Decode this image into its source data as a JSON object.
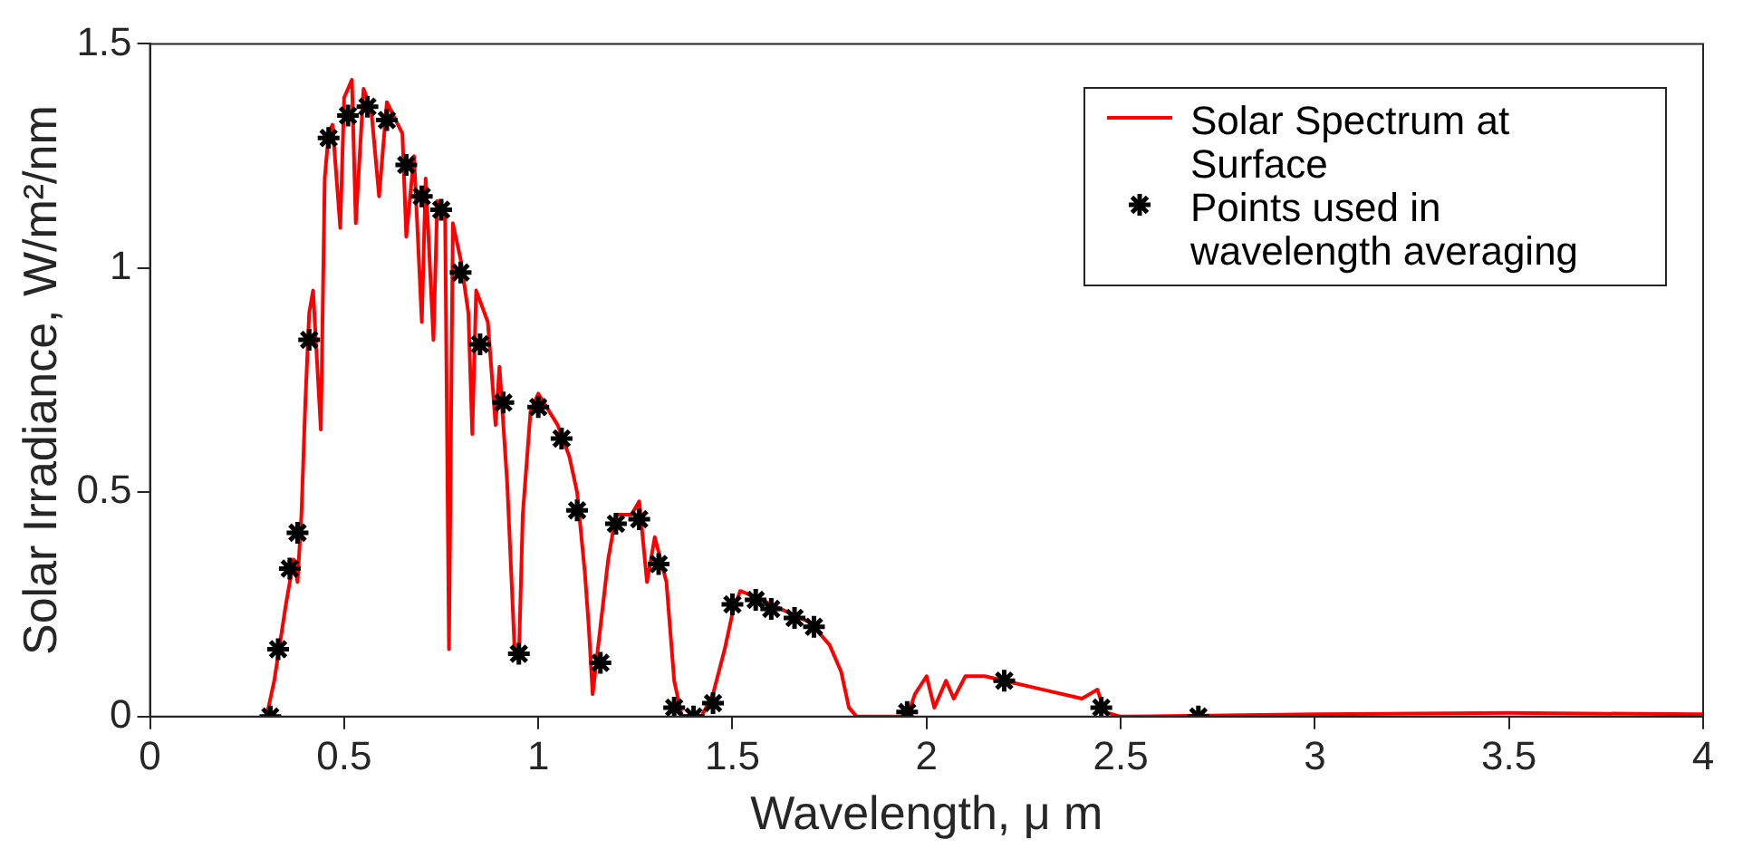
{
  "chart_data": {
    "type": "line",
    "xlabel": "Wavelength, μ m",
    "ylabel": "Solar Irradiance, W/m²/nm",
    "xlim": [
      0,
      4
    ],
    "xticks": [
      0,
      0.5,
      1,
      1.5,
      2,
      2.5,
      3,
      3.5,
      4
    ],
    "ylim": [
      0,
      1.5
    ],
    "yticks": [
      0,
      0.5,
      1,
      1.5
    ],
    "grid": false,
    "legend": "top right",
    "series": [
      {
        "name": "Solar Spectrum at Surface",
        "color": "#ff0000",
        "marker": "none",
        "x": [
          0.3,
          0.32,
          0.35,
          0.37,
          0.38,
          0.39,
          0.4,
          0.41,
          0.42,
          0.44,
          0.45,
          0.46,
          0.47,
          0.49,
          0.5,
          0.52,
          0.53,
          0.55,
          0.57,
          0.59,
          0.61,
          0.65,
          0.66,
          0.68,
          0.7,
          0.71,
          0.73,
          0.74,
          0.76,
          0.77,
          0.78,
          0.8,
          0.82,
          0.83,
          0.84,
          0.87,
          0.89,
          0.9,
          0.92,
          0.94,
          0.95,
          0.96,
          0.98,
          1.0,
          1.05,
          1.08,
          1.1,
          1.12,
          1.13,
          1.14,
          1.16,
          1.18,
          1.2,
          1.24,
          1.26,
          1.28,
          1.3,
          1.33,
          1.35,
          1.37,
          1.4,
          1.42,
          1.45,
          1.48,
          1.5,
          1.52,
          1.55,
          1.6,
          1.65,
          1.7,
          1.75,
          1.78,
          1.8,
          1.82,
          1.95,
          1.97,
          2.0,
          2.02,
          2.05,
          2.07,
          2.1,
          2.15,
          2.2,
          2.3,
          2.4,
          2.44,
          2.46,
          2.5,
          3.0,
          3.5,
          4.0
        ],
        "values": [
          0,
          0.08,
          0.25,
          0.35,
          0.3,
          0.45,
          0.7,
          0.9,
          0.95,
          0.64,
          1.2,
          1.3,
          1.32,
          1.09,
          1.38,
          1.42,
          1.1,
          1.4,
          1.35,
          1.16,
          1.37,
          1.3,
          1.07,
          1.25,
          0.88,
          1.2,
          0.84,
          1.15,
          1.12,
          0.15,
          1.1,
          1.02,
          0.9,
          0.63,
          0.95,
          0.88,
          0.65,
          0.78,
          0.52,
          0.13,
          0.13,
          0.45,
          0.68,
          0.72,
          0.65,
          0.58,
          0.5,
          0.32,
          0.2,
          0.05,
          0.2,
          0.35,
          0.45,
          0.45,
          0.48,
          0.3,
          0.4,
          0.3,
          0.08,
          0,
          0,
          0,
          0.05,
          0.15,
          0.23,
          0.28,
          0.27,
          0.25,
          0.23,
          0.21,
          0.16,
          0.1,
          0.02,
          0,
          0,
          0.05,
          0.09,
          0.02,
          0.08,
          0.04,
          0.09,
          0.09,
          0.08,
          0.06,
          0.04,
          0.06,
          0.01,
          0,
          0.005,
          0.008,
          0.005
        ]
      },
      {
        "name": "Points used in wavelength averaging",
        "type": "scatter",
        "color": "#000000",
        "marker": "cross",
        "x": [
          0.31,
          0.33,
          0.36,
          0.38,
          0.41,
          0.46,
          0.51,
          0.56,
          0.61,
          0.66,
          0.7,
          0.75,
          0.8,
          0.85,
          0.91,
          0.95,
          1.0,
          1.06,
          1.1,
          1.16,
          1.2,
          1.26,
          1.31,
          1.35,
          1.4,
          1.45,
          1.5,
          1.56,
          1.6,
          1.66,
          1.71,
          1.95,
          2.2,
          2.45,
          2.7
        ],
        "values": [
          0,
          0.15,
          0.33,
          0.41,
          0.84,
          1.29,
          1.34,
          1.36,
          1.33,
          1.23,
          1.16,
          1.13,
          0.99,
          0.83,
          0.7,
          0.14,
          0.69,
          0.62,
          0.46,
          0.12,
          0.43,
          0.44,
          0.34,
          0.02,
          0,
          0.03,
          0.25,
          0.26,
          0.24,
          0.22,
          0.2,
          0.01,
          0.08,
          0.02,
          0
        ]
      }
    ]
  }
}
